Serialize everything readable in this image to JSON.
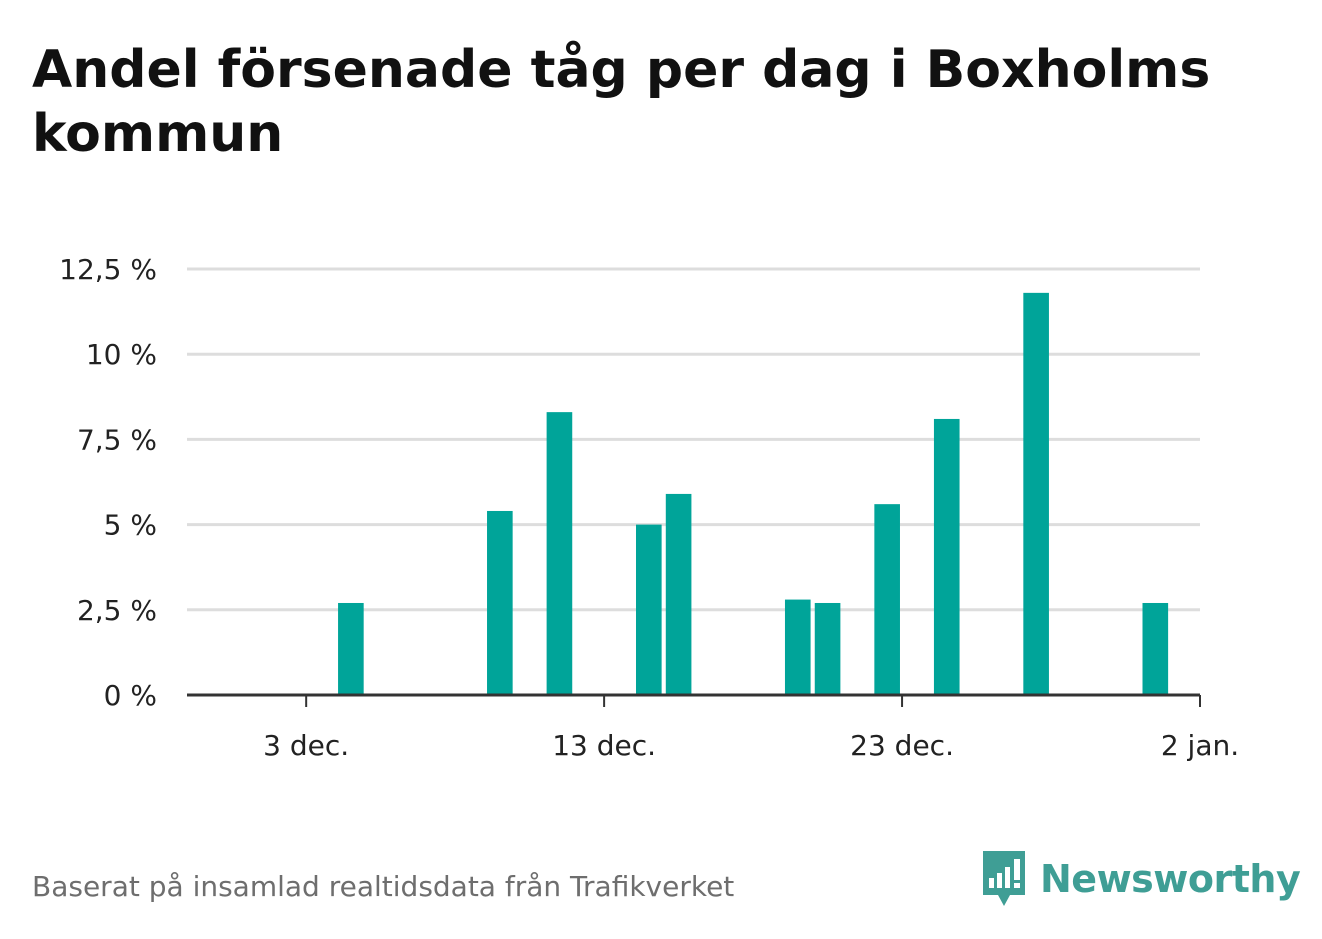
{
  "title": "Andel försenade tåg per dag i Boxholms kommun",
  "footer": {
    "source": "Baserat på insamlad realtidsdata från Trafikverket",
    "brand": "Newsworthy"
  },
  "colors": {
    "bar": "#00a499",
    "grid": "#dddddd",
    "axis": "#333333",
    "brand": "#3f9e95"
  },
  "icons": {
    "logo": "newsworthy-logo-icon"
  },
  "chart_data": {
    "type": "bar",
    "x_type": "date",
    "x": [
      "2023-12-04",
      "2023-12-09",
      "2023-12-11",
      "2023-12-14",
      "2023-12-15",
      "2023-12-19",
      "2023-12-20",
      "2023-12-22",
      "2023-12-24",
      "2023-12-27",
      "2023-12-31"
    ],
    "values": [
      2.7,
      5.4,
      8.3,
      5.0,
      5.9,
      2.8,
      2.7,
      5.6,
      8.1,
      11.8,
      2.7
    ],
    "xlim": [
      "2023-11-29",
      "2024-01-02"
    ],
    "ylim": [
      0,
      12.5
    ],
    "y_ticks": [
      0,
      2.5,
      5,
      7.5,
      10,
      12.5
    ],
    "y_tick_labels": [
      "0 %",
      "2,5 %",
      "5 %",
      "7,5 %",
      "10 %",
      "12,5 %"
    ],
    "x_ticks": [
      "2023-12-03",
      "2023-12-13",
      "2023-12-23",
      "2024-01-02"
    ],
    "x_tick_labels": [
      "3 dec.",
      "13 dec.",
      "23 dec.",
      "2 jan."
    ],
    "grid": true
  }
}
